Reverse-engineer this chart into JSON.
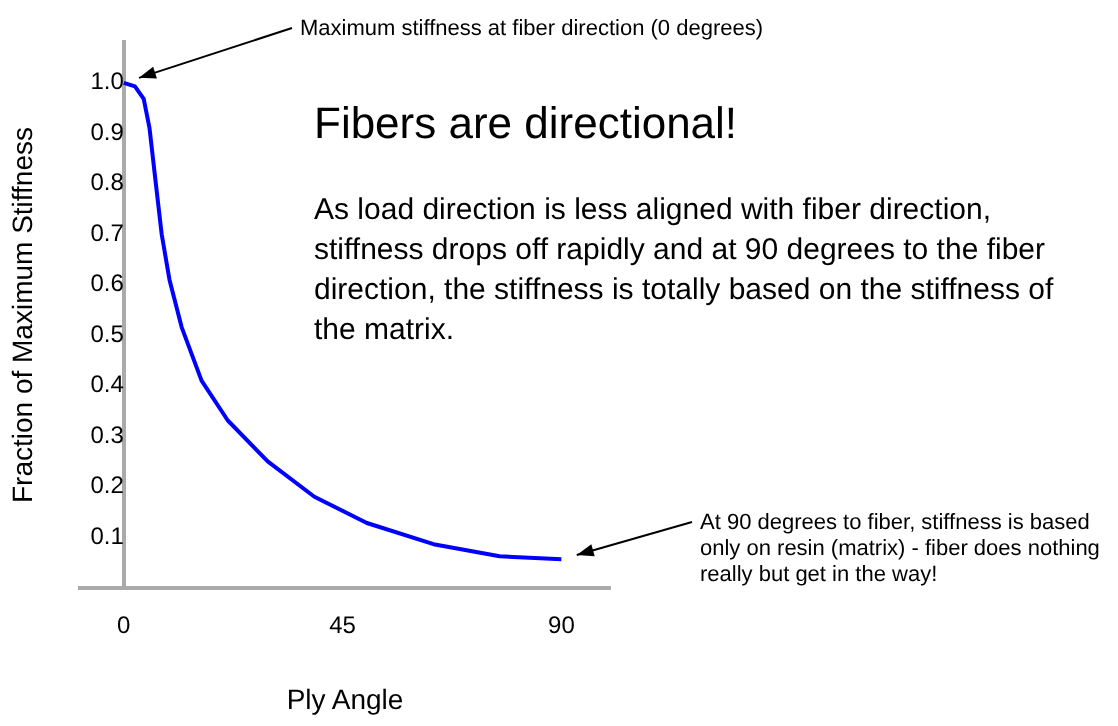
{
  "chart_data": {
    "type": "line",
    "title": "Fibers are directional!",
    "xlabel": "Ply Angle",
    "ylabel": "Fraction of Maximum Stiffness",
    "x": [
      0,
      2.3,
      4.1,
      5.3,
      6.4,
      7.8,
      9.4,
      11.9,
      16,
      21.4,
      29.6,
      39.2,
      50,
      63.7,
      77.3,
      90
    ],
    "series": [
      {
        "color": "#0000ff",
        "values": [
          1.0,
          0.993,
          0.968,
          0.91,
          0.817,
          0.7,
          0.61,
          0.516,
          0.41,
          0.331,
          0.25,
          0.18,
          0.128,
          0.086,
          0.062,
          0.056
        ]
      }
    ],
    "xlim": [
      -9,
      100
    ],
    "xticks": [
      0,
      45,
      90
    ],
    "ylim": [
      0,
      1.08
    ],
    "yticks": [
      0.1,
      0.2,
      0.3,
      0.4,
      0.5,
      0.6,
      0.7,
      0.8,
      0.9,
      {
        "value": 1.0,
        "label": "1.0"
      }
    ],
    "grid": false,
    "legend": false,
    "marker": "none",
    "line_style": "solid",
    "annotations": [
      {
        "text": "Maximum stiffness at fiber direction (0 degrees)",
        "x": 0,
        "y": 1.0
      },
      "As load direction is less aligned with fiber direction, stiffness drops off rapidly and at 90 degrees to the fiber direction, the stiffness is totally based on the stiffness of the matrix.",
      {
        "text": "At 90 degrees to fiber, stiffness is based only on resin (matrix) - fiber does nothing really but get in the way!",
        "x": 90,
        "y": 0.056
      }
    ]
  }
}
